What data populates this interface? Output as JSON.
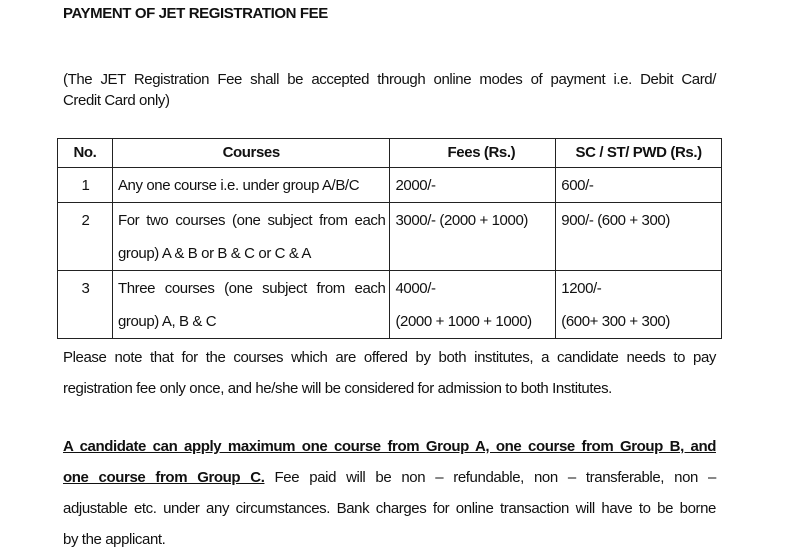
{
  "title": "PAYMENT OF JET REGISTRATION FEE",
  "intro": [
    "(The JET Registration Fee shall be accepted through online modes of payment i.e. Debit Card/",
    "Credit Card only)"
  ],
  "table": {
    "headers": [
      "No.",
      "Courses",
      "Fees (Rs.)",
      "SC / ST/ PWD (Rs.)"
    ],
    "rows": [
      {
        "no": "1",
        "course": [
          "Any one course i.e. under group A/B/C"
        ],
        "fees": [
          "2000/-"
        ],
        "reserved": [
          "600/-"
        ]
      },
      {
        "no": "2",
        "course": [
          "For two courses (one subject from each",
          "group) A & B or B & C or C & A"
        ],
        "fees": [
          "3000/- (2000 + 1000)"
        ],
        "reserved": [
          "900/- (600 + 300)"
        ]
      },
      {
        "no": "3",
        "course": [
          "Three courses (one subject from each",
          "group) A, B & C"
        ],
        "fees": [
          "4000/-",
          "(2000 + 1000 + 1000)"
        ],
        "reserved": [
          "1200/-",
          "(600+ 300 + 300)"
        ]
      }
    ]
  },
  "note": [
    "Please note that for the courses which are offered by both institutes, a candidate needs to pay",
    "registration fee only once, and he/she will be considered for admission to both Institutes."
  ],
  "rule": {
    "bold_line1": "A candidate can apply maximum one course from Group A, one course from Group B, and",
    "bold_line2": "one course from Group C.",
    "rest_line2": " Fee paid will be non – refundable, non – transferable, non –",
    "line3": "adjustable etc. under any circumstances. Bank charges for online transaction will have to be borne",
    "line4": "by the applicant."
  }
}
